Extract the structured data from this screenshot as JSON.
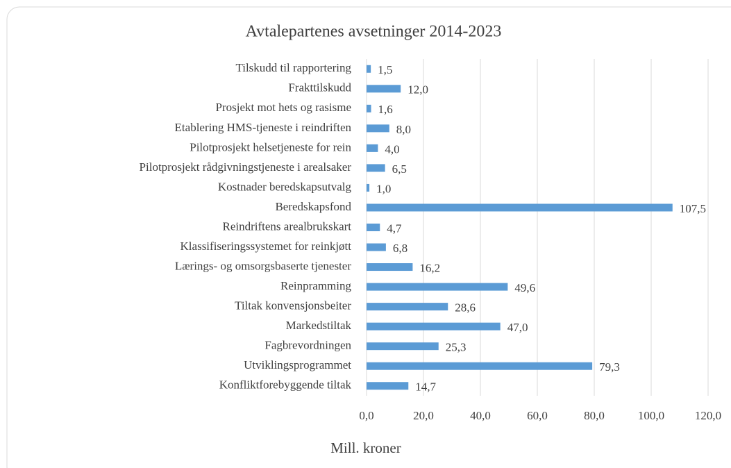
{
  "chart_data": {
    "type": "barh",
    "title": "Avtalepartenes avsetninger 2014-2023",
    "categories": [
      "Tilskudd til rapportering",
      "Frakttilskudd",
      "Prosjekt mot hets og rasisme",
      "Etablering HMS-tjeneste i reindriften",
      "Pilotprosjekt helsetjeneste for rein",
      "Pilotprosjekt rådgivningstjeneste i arealsaker",
      "Kostnader beredskapsutvalg",
      "Beredskapsfond",
      "Reindriftens arealbrukskart",
      "Klassifiseringssystemet for reinkjøtt",
      "Lærings- og omsorgsbaserte tjenester",
      "Reinpramming",
      "Tiltak konvensjonsbeiter",
      "Markedstiltak",
      "Fagbrevordningen",
      "Utviklingsprogrammet",
      "Konfliktforebyggende tiltak"
    ],
    "values": [
      1.5,
      12.0,
      1.6,
      8.0,
      4.0,
      6.5,
      1.0,
      107.5,
      4.7,
      6.8,
      16.2,
      49.6,
      28.6,
      47.0,
      25.3,
      79.3,
      14.7
    ],
    "value_labels": [
      "1,5",
      "12,0",
      "1,6",
      "8,0",
      "4,0",
      "6,5",
      "1,0",
      "107,5",
      "4,7",
      "6,8",
      "16,2",
      "49,6",
      "28,6",
      "47,0",
      "25,3",
      "79,3",
      "14,7"
    ],
    "color": "#5b9bd5",
    "xlabel": "Mill. kroner",
    "xlim": [
      0,
      120
    ],
    "xticks": [
      {
        "value": 0,
        "label": "0,0"
      },
      {
        "value": 20,
        "label": "20,0"
      },
      {
        "value": 40,
        "label": "40,0"
      },
      {
        "value": 60,
        "label": "60,0"
      },
      {
        "value": 80,
        "label": "80,0"
      },
      {
        "value": 100,
        "label": "100,0"
      },
      {
        "value": 120,
        "label": "120,0"
      }
    ],
    "grid": true
  }
}
